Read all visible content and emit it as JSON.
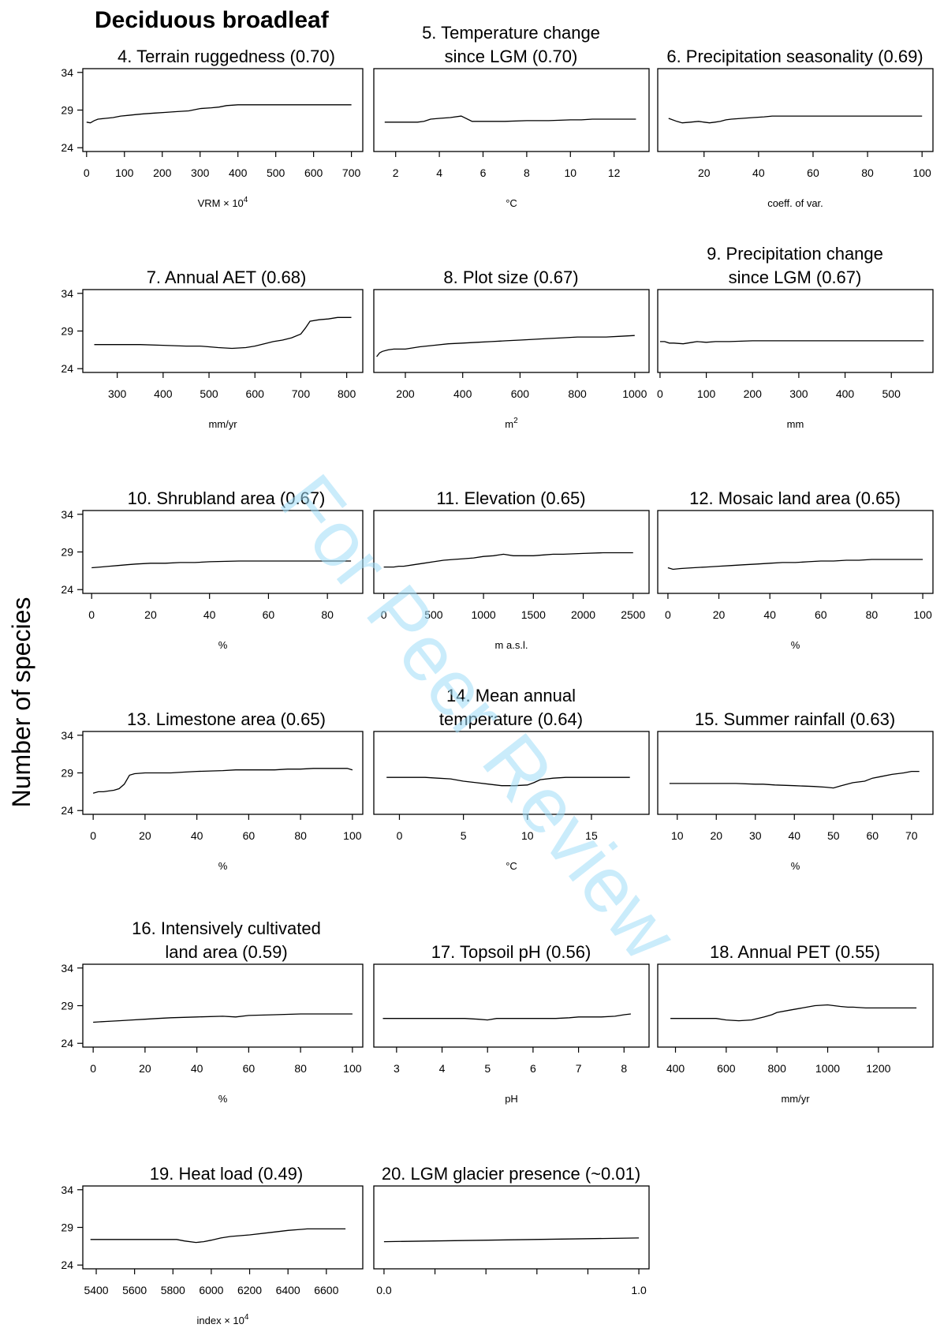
{
  "figure": {
    "title": "Deciduous broadleaf",
    "ylabel": "Number of species",
    "watermark": "For Peer Review"
  },
  "chart_data": [
    {
      "type": "line",
      "title_lines": [
        "4. Terrain ruggedness (0.70)"
      ],
      "xlabel": "VRM × 10",
      "xlabel_sup": "4",
      "xlim": [
        -10,
        730
      ],
      "ylim": [
        23.5,
        34.5
      ],
      "xticks": [
        0,
        100,
        200,
        300,
        400,
        500,
        600,
        700
      ],
      "xtick_labels": [
        "0",
        "100",
        "200",
        "300",
        "400",
        "500",
        "600",
        "700"
      ],
      "yticks": [
        24,
        29,
        34
      ],
      "x": [
        0,
        10,
        20,
        30,
        50,
        70,
        90,
        110,
        130,
        150,
        180,
        210,
        240,
        270,
        300,
        330,
        350,
        370,
        400,
        500,
        600,
        700
      ],
      "y": [
        27.4,
        27.3,
        27.6,
        27.8,
        27.9,
        28.0,
        28.2,
        28.3,
        28.4,
        28.5,
        28.6,
        28.7,
        28.8,
        28.9,
        29.2,
        29.3,
        29.4,
        29.6,
        29.7,
        29.7,
        29.7,
        29.7
      ]
    },
    {
      "type": "line",
      "title_lines": [
        "5. Temperature change",
        "since LGM (0.70)"
      ],
      "xlabel": "°C",
      "xlim": [
        1.0,
        13.6
      ],
      "ylim": [
        23.5,
        34.5
      ],
      "xticks": [
        2,
        4,
        6,
        8,
        10,
        12
      ],
      "xtick_labels": [
        "2",
        "4",
        "6",
        "8",
        "10",
        "12"
      ],
      "yticks": [
        24,
        29,
        34
      ],
      "x": [
        1.5,
        2.5,
        3.0,
        3.3,
        3.6,
        4.0,
        4.5,
        5.0,
        5.5,
        6.0,
        7.0,
        8.0,
        9.0,
        10.0,
        10.5,
        11.0,
        12.0,
        13.0
      ],
      "y": [
        27.4,
        27.4,
        27.4,
        27.5,
        27.8,
        27.9,
        28.0,
        28.2,
        27.5,
        27.5,
        27.5,
        27.6,
        27.6,
        27.7,
        27.7,
        27.8,
        27.8,
        27.8
      ]
    },
    {
      "type": "line",
      "title_lines": [
        "6. Precipitation seasonality (0.69)"
      ],
      "xlabel": "coeff. of var.",
      "xlim": [
        3,
        104
      ],
      "ylim": [
        23.5,
        34.5
      ],
      "xticks": [
        20,
        40,
        60,
        80,
        100
      ],
      "xtick_labels": [
        "20",
        "40",
        "60",
        "80",
        "100"
      ],
      "yticks": [
        24,
        29,
        34
      ],
      "x": [
        7,
        10,
        12,
        15,
        18,
        20,
        22,
        24,
        26,
        28,
        30,
        34,
        38,
        42,
        45,
        50,
        60,
        70,
        80,
        90,
        100
      ],
      "y": [
        27.9,
        27.5,
        27.3,
        27.4,
        27.5,
        27.4,
        27.3,
        27.4,
        27.5,
        27.7,
        27.8,
        27.9,
        28.0,
        28.1,
        28.2,
        28.2,
        28.2,
        28.2,
        28.2,
        28.2,
        28.2
      ]
    },
    {
      "type": "line",
      "title_lines": [
        "7. Annual AET (0.68)"
      ],
      "xlabel": "mm/yr",
      "xlim": [
        225,
        835
      ],
      "ylim": [
        23.5,
        34.5
      ],
      "xticks": [
        300,
        400,
        500,
        600,
        700,
        800
      ],
      "xtick_labels": [
        "300",
        "400",
        "500",
        "600",
        "700",
        "800"
      ],
      "yticks": [
        24,
        29,
        34
      ],
      "x": [
        250,
        300,
        350,
        400,
        450,
        480,
        500,
        520,
        550,
        580,
        600,
        620,
        640,
        660,
        680,
        700,
        710,
        720,
        740,
        760,
        780,
        810
      ],
      "y": [
        27.2,
        27.2,
        27.2,
        27.1,
        27.0,
        27.0,
        26.9,
        26.8,
        26.7,
        26.8,
        27.0,
        27.3,
        27.6,
        27.8,
        28.1,
        28.6,
        29.4,
        30.3,
        30.5,
        30.6,
        30.8,
        30.8
      ]
    },
    {
      "type": "line",
      "title_lines": [
        "8. Plot size (0.67)"
      ],
      "xlabel": "m",
      "xlabel_sup": "2",
      "xlim": [
        90,
        1050
      ],
      "ylim": [
        23.5,
        34.5
      ],
      "xticks": [
        200,
        400,
        600,
        800,
        1000
      ],
      "xtick_labels": [
        "200",
        "400",
        "600",
        "800",
        "1000"
      ],
      "yticks": [
        24,
        29,
        34
      ],
      "x": [
        100,
        110,
        120,
        140,
        160,
        180,
        200,
        250,
        300,
        350,
        400,
        450,
        500,
        550,
        600,
        650,
        700,
        750,
        800,
        850,
        900,
        950,
        1000
      ],
      "y": [
        25.6,
        26.1,
        26.3,
        26.5,
        26.6,
        26.6,
        26.6,
        26.9,
        27.1,
        27.3,
        27.4,
        27.5,
        27.6,
        27.7,
        27.8,
        27.9,
        28.0,
        28.1,
        28.2,
        28.2,
        28.2,
        28.3,
        28.4
      ]
    },
    {
      "type": "line",
      "title_lines": [
        "9. Precipitation change",
        "since LGM (0.67)"
      ],
      "xlabel": "mm",
      "xlim": [
        -5,
        590
      ],
      "ylim": [
        23.5,
        34.5
      ],
      "xticks": [
        0,
        100,
        200,
        300,
        400,
        500
      ],
      "xtick_labels": [
        "0",
        "100",
        "200",
        "300",
        "400",
        "500"
      ],
      "yticks": [
        24,
        29,
        34
      ],
      "x": [
        0,
        10,
        20,
        30,
        50,
        70,
        80,
        100,
        120,
        150,
        200,
        300,
        400,
        500,
        570
      ],
      "y": [
        27.6,
        27.6,
        27.4,
        27.4,
        27.3,
        27.5,
        27.6,
        27.5,
        27.6,
        27.6,
        27.7,
        27.7,
        27.7,
        27.7,
        27.7
      ]
    },
    {
      "type": "line",
      "title_lines": [
        "10. Shrubland area (0.67)"
      ],
      "xlabel": "%",
      "xlim": [
        -3,
        92
      ],
      "ylim": [
        23.5,
        34.5
      ],
      "xticks": [
        0,
        20,
        40,
        60,
        80
      ],
      "xtick_labels": [
        "0",
        "20",
        "40",
        "60",
        "80"
      ],
      "yticks": [
        24,
        29,
        34
      ],
      "x": [
        0,
        3,
        6,
        9,
        12,
        15,
        20,
        25,
        30,
        35,
        40,
        50,
        60,
        70,
        80,
        88
      ],
      "y": [
        26.9,
        27.0,
        27.1,
        27.2,
        27.3,
        27.4,
        27.5,
        27.5,
        27.6,
        27.6,
        27.7,
        27.8,
        27.8,
        27.8,
        27.8,
        27.8
      ]
    },
    {
      "type": "line",
      "title_lines": [
        "11. Elevation (0.65)"
      ],
      "xlabel": "m a.s.l.",
      "xlim": [
        -100,
        2660
      ],
      "ylim": [
        23.5,
        34.5
      ],
      "xticks": [
        0,
        500,
        1000,
        1500,
        2000,
        2500
      ],
      "xtick_labels": [
        "0",
        "500",
        "1000",
        "1500",
        "2000",
        "2500"
      ],
      "yticks": [
        24,
        29,
        34
      ],
      "x": [
        0,
        100,
        150,
        200,
        300,
        400,
        500,
        600,
        700,
        800,
        900,
        1000,
        1100,
        1200,
        1300,
        1400,
        1500,
        1600,
        1700,
        1800,
        2000,
        2200,
        2500
      ],
      "y": [
        27.0,
        27.0,
        27.1,
        27.1,
        27.3,
        27.5,
        27.7,
        27.9,
        28.0,
        28.1,
        28.2,
        28.4,
        28.5,
        28.7,
        28.5,
        28.5,
        28.5,
        28.6,
        28.7,
        28.7,
        28.8,
        28.9,
        28.9
      ]
    },
    {
      "type": "line",
      "title_lines": [
        "12. Mosaic land area (0.65)"
      ],
      "xlabel": "%",
      "xlim": [
        -4,
        104
      ],
      "ylim": [
        23.5,
        34.5
      ],
      "xticks": [
        0,
        20,
        40,
        60,
        80,
        100
      ],
      "xtick_labels": [
        "0",
        "20",
        "40",
        "60",
        "80",
        "100"
      ],
      "yticks": [
        24,
        29,
        34
      ],
      "x": [
        0,
        2,
        5,
        10,
        15,
        20,
        25,
        30,
        35,
        40,
        45,
        50,
        55,
        60,
        65,
        70,
        75,
        80,
        85,
        90,
        100
      ],
      "y": [
        26.9,
        26.7,
        26.8,
        26.9,
        27.0,
        27.1,
        27.2,
        27.3,
        27.4,
        27.5,
        27.6,
        27.6,
        27.7,
        27.8,
        27.8,
        27.9,
        27.9,
        28.0,
        28.0,
        28.0,
        28.0
      ]
    },
    {
      "type": "line",
      "title_lines": [
        "13. Limestone area (0.65)"
      ],
      "xlabel": "%",
      "xlim": [
        -4,
        104
      ],
      "ylim": [
        23.5,
        34.5
      ],
      "xticks": [
        0,
        20,
        40,
        60,
        80,
        100
      ],
      "xtick_labels": [
        "0",
        "20",
        "40",
        "60",
        "80",
        "100"
      ],
      "yticks": [
        24,
        29,
        34
      ],
      "x": [
        0,
        2,
        4,
        6,
        8,
        10,
        12,
        14,
        16,
        20,
        25,
        30,
        35,
        40,
        50,
        55,
        60,
        70,
        75,
        80,
        85,
        90,
        95,
        98,
        100
      ],
      "y": [
        26.3,
        26.5,
        26.5,
        26.6,
        26.7,
        26.9,
        27.5,
        28.7,
        28.9,
        29.0,
        29.0,
        29.0,
        29.1,
        29.2,
        29.3,
        29.4,
        29.4,
        29.4,
        29.5,
        29.5,
        29.6,
        29.6,
        29.6,
        29.6,
        29.4
      ]
    },
    {
      "type": "line",
      "title_lines": [
        "14. Mean annual",
        "temperature (0.64)"
      ],
      "xlabel": "°C",
      "xlim": [
        -2,
        19.5
      ],
      "ylim": [
        23.5,
        34.5
      ],
      "xticks": [
        0,
        5,
        10,
        15
      ],
      "xtick_labels": [
        "0",
        "5",
        "10",
        "15"
      ],
      "yticks": [
        24,
        29,
        34
      ],
      "x": [
        -1,
        1,
        2,
        3,
        4,
        5,
        6,
        7,
        8,
        9,
        10,
        10.5,
        11,
        12,
        13,
        14,
        15,
        16,
        17,
        18
      ],
      "y": [
        28.4,
        28.4,
        28.4,
        28.3,
        28.2,
        27.9,
        27.7,
        27.5,
        27.3,
        27.3,
        27.4,
        27.7,
        28.1,
        28.3,
        28.4,
        28.4,
        28.4,
        28.4,
        28.4,
        28.4
      ]
    },
    {
      "type": "line",
      "title_lines": [
        "15. Summer rainfall (0.63)"
      ],
      "xlabel": "%",
      "xlim": [
        5,
        75.5
      ],
      "ylim": [
        23.5,
        34.5
      ],
      "xticks": [
        10,
        20,
        30,
        40,
        50,
        60,
        70
      ],
      "xtick_labels": [
        "10",
        "20",
        "30",
        "40",
        "50",
        "60",
        "70"
      ],
      "yticks": [
        24,
        29,
        34
      ],
      "x": [
        8,
        15,
        20,
        25,
        30,
        32,
        35,
        40,
        45,
        48,
        50,
        52,
        55,
        58,
        60,
        62,
        65,
        68,
        70,
        72
      ],
      "y": [
        27.6,
        27.6,
        27.6,
        27.6,
        27.5,
        27.5,
        27.4,
        27.3,
        27.2,
        27.1,
        27.0,
        27.3,
        27.7,
        27.9,
        28.3,
        28.5,
        28.8,
        29.0,
        29.2,
        29.2
      ]
    },
    {
      "type": "line",
      "title_lines": [
        "16. Intensively cultivated",
        "land area (0.59)"
      ],
      "xlabel": "%",
      "xlim": [
        -4,
        104
      ],
      "ylim": [
        23.5,
        34.5
      ],
      "xticks": [
        0,
        20,
        40,
        60,
        80,
        100
      ],
      "xtick_labels": [
        "0",
        "20",
        "40",
        "60",
        "80",
        "100"
      ],
      "yticks": [
        24,
        29,
        34
      ],
      "x": [
        0,
        5,
        10,
        15,
        20,
        25,
        30,
        40,
        50,
        55,
        60,
        70,
        80,
        90,
        100
      ],
      "y": [
        26.8,
        26.9,
        27.0,
        27.1,
        27.2,
        27.3,
        27.4,
        27.5,
        27.6,
        27.5,
        27.7,
        27.8,
        27.9,
        27.9,
        27.9
      ]
    },
    {
      "type": "line",
      "title_lines": [
        "17. Topsoil pH (0.56)"
      ],
      "xlabel": "pH",
      "xlim": [
        2.5,
        8.55
      ],
      "ylim": [
        23.5,
        34.5
      ],
      "xticks": [
        3,
        4,
        5,
        6,
        7,
        8
      ],
      "xtick_labels": [
        "3",
        "4",
        "5",
        "6",
        "7",
        "8"
      ],
      "yticks": [
        24,
        29,
        34
      ],
      "x": [
        2.7,
        3.5,
        4.5,
        4.8,
        5.0,
        5.2,
        5.5,
        6.0,
        6.5,
        6.8,
        7.0,
        7.5,
        7.8,
        8.0,
        8.15
      ],
      "y": [
        27.3,
        27.3,
        27.3,
        27.2,
        27.1,
        27.3,
        27.3,
        27.3,
        27.3,
        27.4,
        27.5,
        27.5,
        27.6,
        27.8,
        27.9
      ]
    },
    {
      "type": "line",
      "title_lines": [
        "18. Annual PET (0.55)"
      ],
      "xlabel": "mm/yr",
      "xlim": [
        330,
        1415
      ],
      "ylim": [
        23.5,
        34.5
      ],
      "xticks": [
        400,
        600,
        800,
        1000,
        1200
      ],
      "xtick_labels": [
        "400",
        "600",
        "800",
        "1000",
        "1200"
      ],
      "yticks": [
        24,
        29,
        34
      ],
      "x": [
        380,
        500,
        560,
        600,
        650,
        700,
        750,
        780,
        800,
        850,
        900,
        950,
        1000,
        1050,
        1080,
        1100,
        1150,
        1200,
        1350
      ],
      "y": [
        27.3,
        27.3,
        27.3,
        27.1,
        27.0,
        27.1,
        27.5,
        27.8,
        28.1,
        28.4,
        28.7,
        29.0,
        29.1,
        28.9,
        28.8,
        28.8,
        28.7,
        28.7,
        28.7
      ]
    },
    {
      "type": "line",
      "title_lines": [
        "19. Heat load (0.49)"
      ],
      "xlabel": "index × 10",
      "xlabel_sup": "4",
      "xlim": [
        5330,
        6790
      ],
      "ylim": [
        23.5,
        34.5
      ],
      "xticks": [
        5400,
        5600,
        5800,
        6000,
        6200,
        6400,
        6600
      ],
      "xtick_labels": [
        "5400",
        "5600",
        "5800",
        "6000",
        "6200",
        "6400",
        "6600"
      ],
      "yticks": [
        24,
        29,
        34
      ],
      "x": [
        5370,
        5500,
        5700,
        5820,
        5860,
        5920,
        5960,
        6000,
        6050,
        6100,
        6150,
        6200,
        6300,
        6400,
        6450,
        6500,
        6700
      ],
      "y": [
        27.4,
        27.4,
        27.4,
        27.4,
        27.2,
        27.0,
        27.1,
        27.3,
        27.6,
        27.8,
        27.9,
        28.0,
        28.3,
        28.6,
        28.7,
        28.8,
        28.8
      ]
    },
    {
      "type": "line",
      "title_lines": [
        "20. LGM glacier presence (~0.01)"
      ],
      "xlabel": "",
      "xlim": [
        -0.04,
        1.04
      ],
      "ylim": [
        23.5,
        34.5
      ],
      "xticks": [
        0,
        0.2,
        0.4,
        0.6,
        0.8,
        1.0
      ],
      "xtick_labels": [
        "0.0",
        "",
        "",
        "",
        "",
        "1.0"
      ],
      "yticks": [
        24,
        29,
        34
      ],
      "x": [
        0,
        1
      ],
      "y": [
        27.1,
        27.6
      ]
    }
  ]
}
